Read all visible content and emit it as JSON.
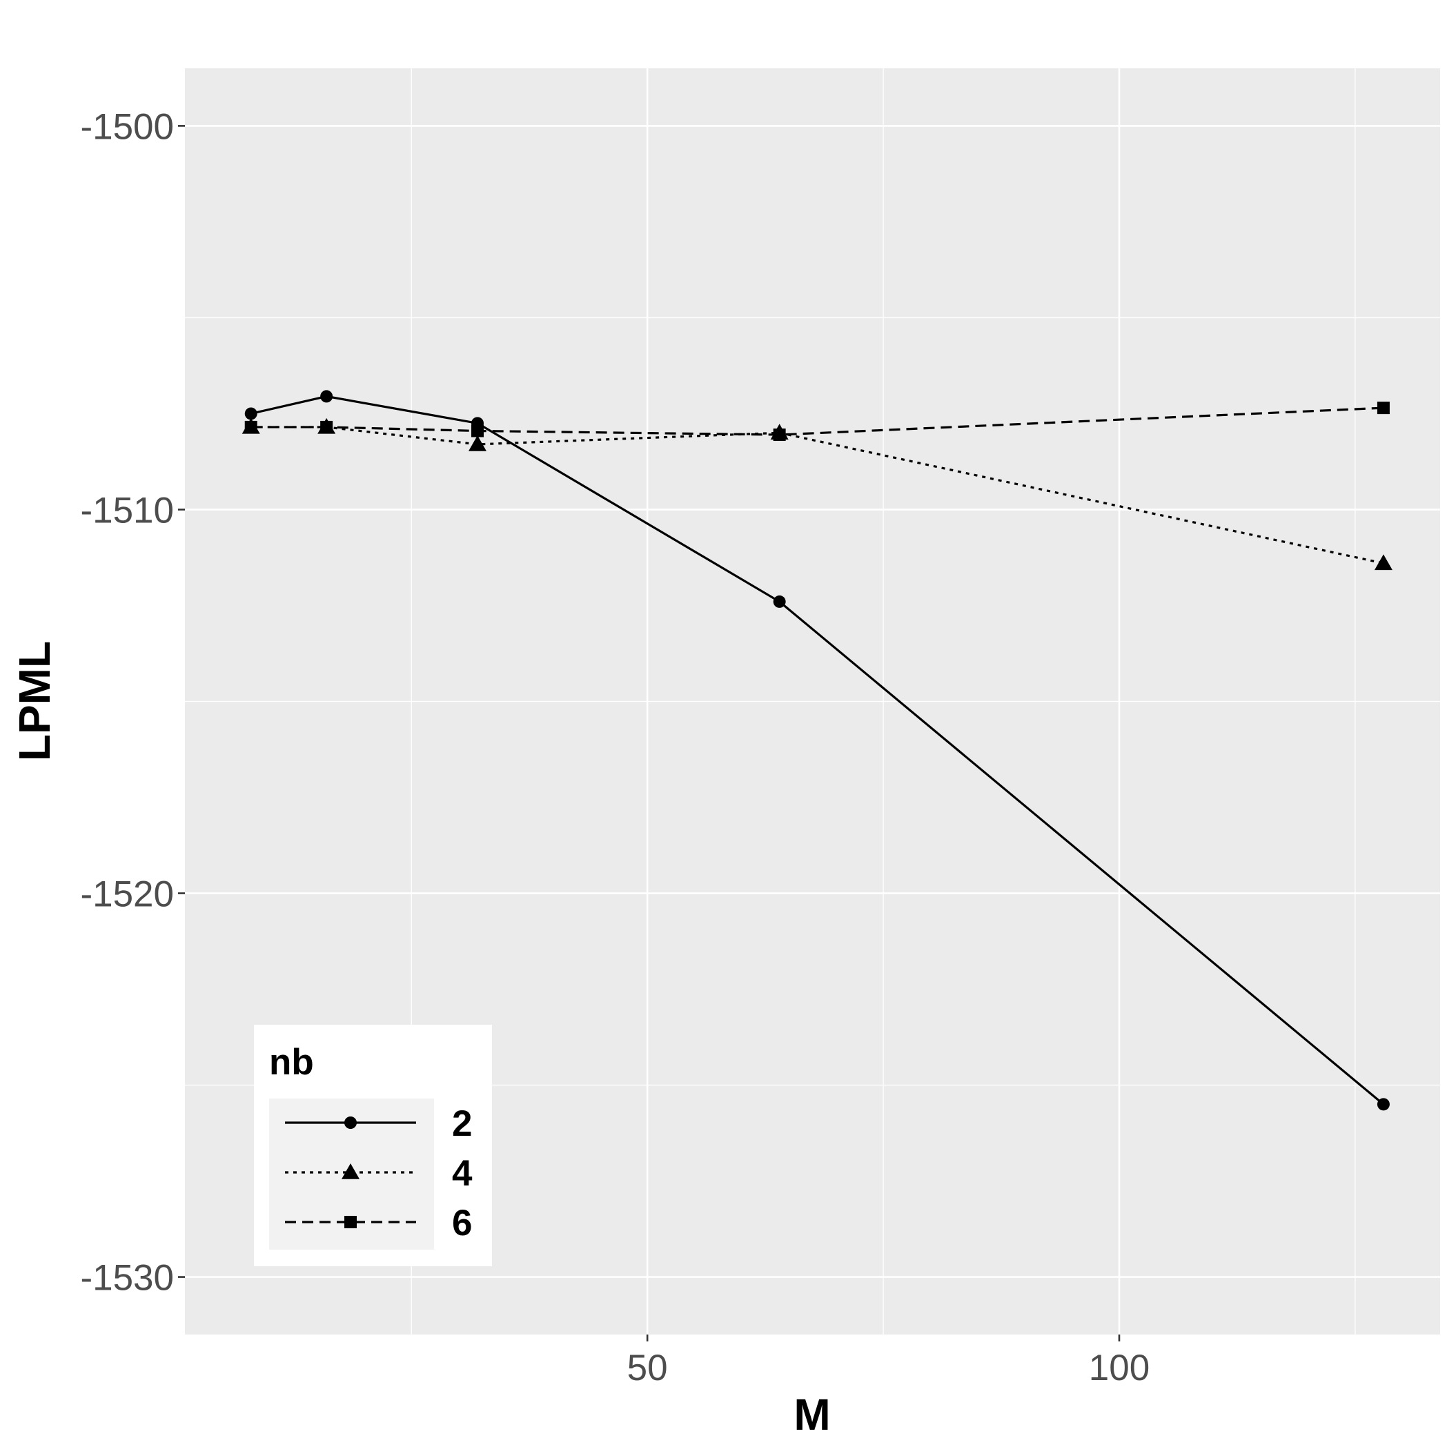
{
  "chart_data": {
    "type": "line",
    "xlabel": "M",
    "ylabel": "LPML",
    "xlim": [
      1,
      134
    ],
    "ylim": [
      -1531.5,
      -1498.5
    ],
    "x_ticks": [
      50,
      100
    ],
    "x_tick_labels": [
      "50",
      "100"
    ],
    "x_minor_ticks": [
      25,
      75,
      125
    ],
    "y_ticks": [
      -1500,
      -1510,
      -1520,
      -1530
    ],
    "y_tick_labels": [
      "-1500",
      "-1510",
      "-1520",
      "-1530"
    ],
    "y_minor_ticks": [
      -1505,
      -1515,
      -1525
    ],
    "grid": true,
    "legend": {
      "title": "nb",
      "position": "bottom-left",
      "entries": [
        "2",
        "4",
        "6"
      ]
    },
    "x": [
      8,
      16,
      32,
      64,
      128
    ],
    "series": [
      {
        "name": "2",
        "marker": "circle",
        "linestyle": "solid",
        "values": [
          -1507.5,
          -1507.05,
          -1507.75,
          -1512.4,
          -1525.5
        ]
      },
      {
        "name": "4",
        "marker": "triangle",
        "linestyle": "dotted",
        "values": [
          -1507.85,
          -1507.85,
          -1508.3,
          -1508.0,
          -1511.4
        ]
      },
      {
        "name": "6",
        "marker": "square",
        "linestyle": "dashed",
        "values": [
          -1507.85,
          -1507.85,
          -1507.95,
          -1508.05,
          -1507.35
        ]
      }
    ],
    "colors": {
      "panel": "#ebebeb",
      "grid": "#ffffff",
      "line": "#000000",
      "tick_text": "#4d4d4d"
    }
  }
}
